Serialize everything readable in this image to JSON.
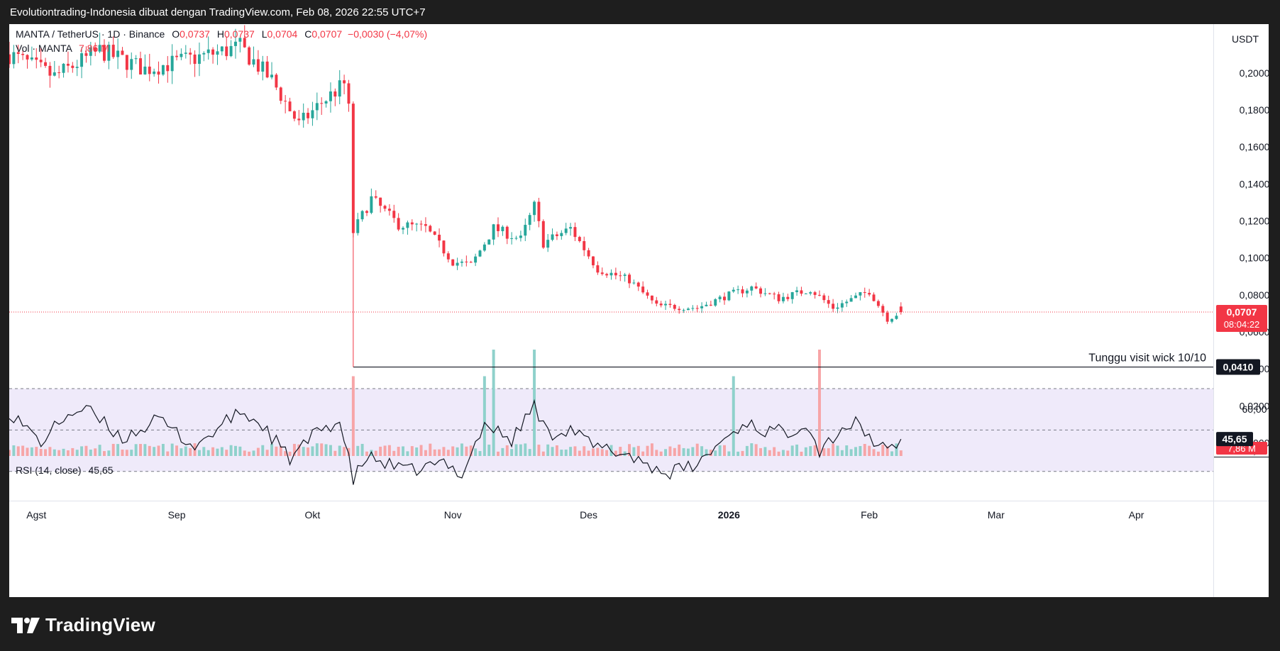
{
  "topbar": {
    "text": "Evolutiontrading-Indonesia dibuat dengan TradingView.com, Feb 08, 2026 22:55 UTC+7"
  },
  "legend": {
    "symbol": "MANTA / TetherUS · 1D · Binance",
    "o_label": "O",
    "o_value": "0,0737",
    "h_label": "H",
    "h_value": "0,0737",
    "l_label": "L",
    "l_value": "0,0704",
    "c_label": "C",
    "c_value": "0,0707",
    "change": "−0,0030 (−4,07%)",
    "vol_label": "Vol · MANTA",
    "vol_value": "7,86 M",
    "rsi_label": "RSI (14, close)",
    "rsi_value": "45,65"
  },
  "footer": {
    "brand": "TradingView"
  },
  "colors": {
    "up": "#26a69a",
    "down": "#f23645",
    "vol_up": "#8fd1cb",
    "vol_down": "#f7a5a7",
    "rsi_bg": "#efeafa",
    "text": "#131722"
  },
  "chart_data": [
    {
      "type": "candlestick",
      "symbol": "MANTA / TetherUS",
      "interval": "1D",
      "exchange": "Binance",
      "y_axis": {
        "unit": "USDT",
        "ticks": [
          "0,0000",
          "0,0200",
          "0,0400",
          "0,0600",
          "0,0800",
          "0,1000",
          "0,1200",
          "0,1400",
          "0,1600",
          "0,1800",
          "0,2000"
        ],
        "ylim": [
          0,
          0.22
        ]
      },
      "x_axis": {
        "ticks": [
          "Agst",
          "Sep",
          "Okt",
          "Nov",
          "Des",
          "2026",
          "Feb",
          "Mar",
          "Apr"
        ]
      },
      "last_price_label": "0,0707",
      "countdown_label": "08:04:22",
      "horizontal_line": {
        "price": 0.041,
        "price_label": "0,0410",
        "start": "2025-10-10",
        "annotation": "Tunggu visit wick 10/10"
      },
      "price_anchors": [
        {
          "date": "2025-07-26",
          "close": 0.21
        },
        {
          "date": "2025-08-05",
          "close": 0.198
        },
        {
          "date": "2025-08-15",
          "close": 0.212
        },
        {
          "date": "2025-08-25",
          "close": 0.202
        },
        {
          "date": "2025-09-05",
          "close": 0.208
        },
        {
          "date": "2025-09-15",
          "close": 0.214
        },
        {
          "date": "2025-09-22",
          "close": 0.196
        },
        {
          "date": "2025-09-28",
          "close": 0.172
        },
        {
          "date": "2025-10-03",
          "close": 0.184
        },
        {
          "date": "2025-10-08",
          "close": 0.194
        },
        {
          "date": "2025-10-09",
          "close": 0.18
        },
        {
          "date": "2025-10-10",
          "close": 0.114
        },
        {
          "date": "2025-10-14",
          "close": 0.132
        },
        {
          "date": "2025-10-20",
          "close": 0.118
        },
        {
          "date": "2025-10-26",
          "close": 0.116
        },
        {
          "date": "2025-11-01",
          "close": 0.098
        },
        {
          "date": "2025-11-05",
          "close": 0.096
        },
        {
          "date": "2025-11-10",
          "close": 0.116
        },
        {
          "date": "2025-11-16",
          "close": 0.11
        },
        {
          "date": "2025-11-19",
          "close": 0.128
        },
        {
          "date": "2025-11-21",
          "close": 0.108
        },
        {
          "date": "2025-11-27",
          "close": 0.116
        },
        {
          "date": "2025-12-03",
          "close": 0.094
        },
        {
          "date": "2025-12-10",
          "close": 0.088
        },
        {
          "date": "2025-12-16",
          "close": 0.074
        },
        {
          "date": "2025-12-25",
          "close": 0.073
        },
        {
          "date": "2026-01-01",
          "close": 0.08
        },
        {
          "date": "2026-01-06",
          "close": 0.084
        },
        {
          "date": "2026-01-12",
          "close": 0.078
        },
        {
          "date": "2026-01-19",
          "close": 0.083
        },
        {
          "date": "2026-01-24",
          "close": 0.073
        },
        {
          "date": "2026-02-01",
          "close": 0.082
        },
        {
          "date": "2026-02-05",
          "close": 0.067
        },
        {
          "date": "2026-02-08",
          "close": 0.0707
        }
      ],
      "volume_spikes": [
        {
          "date": "2025-10-10",
          "value": "high"
        },
        {
          "date": "2025-11-10",
          "value": "very high"
        },
        {
          "date": "2025-11-19",
          "value": "very high"
        },
        {
          "date": "2026-01-21",
          "value": "very high"
        },
        {
          "date": "2025-11-08",
          "value": "high"
        },
        {
          "date": "2026-01-02",
          "value": "high"
        }
      ],
      "volume_last_label": "7,86 M"
    },
    {
      "type": "line",
      "name": "RSI (14, close)",
      "last_value": 45.65,
      "last_label": "45,65",
      "levels": [
        70,
        50,
        30
      ],
      "y_axis": {
        "ticks": [
          "60,00",
          "40,00"
        ]
      },
      "rsi_anchors": [
        {
          "date": "2025-07-26",
          "v": 59
        },
        {
          "date": "2025-08-02",
          "v": 44
        },
        {
          "date": "2025-08-08",
          "v": 58
        },
        {
          "date": "2025-08-12",
          "v": 60
        },
        {
          "date": "2025-08-20",
          "v": 46
        },
        {
          "date": "2025-08-28",
          "v": 55
        },
        {
          "date": "2025-09-05",
          "v": 42
        },
        {
          "date": "2025-09-15",
          "v": 59
        },
        {
          "date": "2025-09-20",
          "v": 52
        },
        {
          "date": "2025-09-26",
          "v": 36
        },
        {
          "date": "2025-10-03",
          "v": 51
        },
        {
          "date": "2025-10-07",
          "v": 54
        },
        {
          "date": "2025-10-10",
          "v": 26
        },
        {
          "date": "2025-10-13",
          "v": 37
        },
        {
          "date": "2025-10-22",
          "v": 30
        },
        {
          "date": "2025-10-30",
          "v": 34
        },
        {
          "date": "2025-11-03",
          "v": 29
        },
        {
          "date": "2025-11-08",
          "v": 53
        },
        {
          "date": "2025-11-14",
          "v": 45
        },
        {
          "date": "2025-11-19",
          "v": 62
        },
        {
          "date": "2025-11-22",
          "v": 48
        },
        {
          "date": "2025-11-27",
          "v": 51
        },
        {
          "date": "2025-12-02",
          "v": 42
        },
        {
          "date": "2025-12-10",
          "v": 38
        },
        {
          "date": "2025-12-18",
          "v": 29
        },
        {
          "date": "2025-12-25",
          "v": 33
        },
        {
          "date": "2025-12-30",
          "v": 44
        },
        {
          "date": "2026-01-05",
          "v": 54
        },
        {
          "date": "2026-01-08",
          "v": 50
        },
        {
          "date": "2026-01-14",
          "v": 49
        },
        {
          "date": "2026-01-18",
          "v": 54
        },
        {
          "date": "2026-01-21",
          "v": 40
        },
        {
          "date": "2026-01-26",
          "v": 51
        },
        {
          "date": "2026-01-29",
          "v": 53
        },
        {
          "date": "2026-02-02",
          "v": 45
        },
        {
          "date": "2026-02-05",
          "v": 39
        },
        {
          "date": "2026-02-08",
          "v": 45.65
        }
      ]
    }
  ]
}
